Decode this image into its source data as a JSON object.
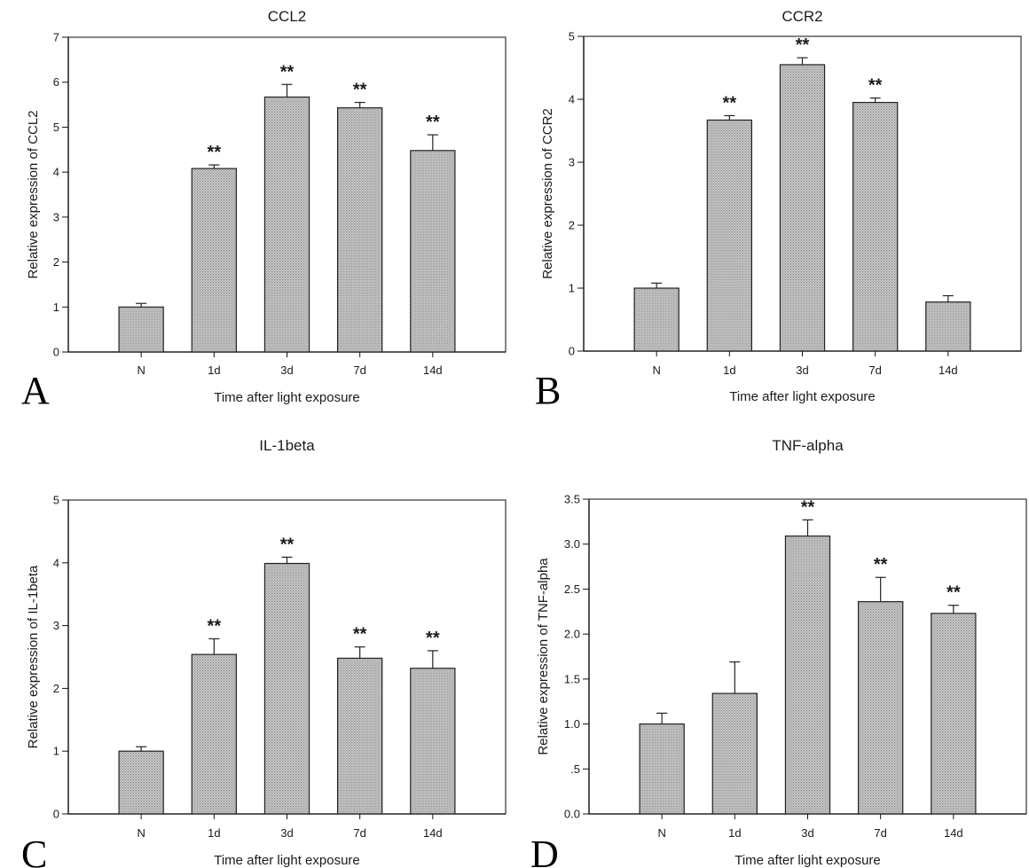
{
  "chart_data": [
    {
      "panel_letter": "A",
      "type": "bar",
      "title": "CCL2",
      "xlabel": "Time after light exposure",
      "ylabel": "Relative expression of CCL2",
      "categories": [
        "N",
        "1d",
        "3d",
        "7d",
        "14d"
      ],
      "values": [
        1.0,
        4.08,
        5.67,
        5.43,
        4.48
      ],
      "errors": [
        0.08,
        0.08,
        0.28,
        0.12,
        0.35
      ],
      "significance": [
        "",
        "**",
        "**",
        "**",
        "**"
      ],
      "ylim": [
        0,
        7
      ],
      "yticks": [
        0,
        1,
        2,
        3,
        4,
        5,
        6,
        7
      ],
      "ytick_labels": [
        "0",
        "1",
        "2",
        "3",
        "4",
        "5",
        "6",
        "7"
      ],
      "grid": false
    },
    {
      "panel_letter": "B",
      "type": "bar",
      "title": "CCR2",
      "xlabel": "Time after light exposure",
      "ylabel": "Relative expression of CCR2",
      "categories": [
        "N",
        "1d",
        "3d",
        "7d",
        "14d"
      ],
      "values": [
        1.0,
        3.67,
        4.55,
        3.95,
        0.78
      ],
      "errors": [
        0.08,
        0.07,
        0.11,
        0.07,
        0.1
      ],
      "significance": [
        "",
        "**",
        "**",
        "**",
        ""
      ],
      "ylim": [
        0,
        5
      ],
      "yticks": [
        0,
        1,
        2,
        3,
        4,
        5
      ],
      "ytick_labels": [
        "0",
        "1",
        "2",
        "3",
        "4",
        "5"
      ],
      "grid": false
    },
    {
      "panel_letter": "C",
      "type": "bar",
      "title": "IL-1beta",
      "xlabel": "Time after light exposure",
      "ylabel": "Relative expression of IL-1beta",
      "categories": [
        "N",
        "1d",
        "3d",
        "7d",
        "14d"
      ],
      "values": [
        1.0,
        2.54,
        3.99,
        2.48,
        2.32
      ],
      "errors": [
        0.07,
        0.25,
        0.1,
        0.18,
        0.28
      ],
      "significance": [
        "",
        "**",
        "**",
        "**",
        "**"
      ],
      "ylim": [
        0,
        5
      ],
      "yticks": [
        0,
        1,
        2,
        3,
        4,
        5
      ],
      "ytick_labels": [
        "0",
        "1",
        "2",
        "3",
        "4",
        "5"
      ],
      "grid": false
    },
    {
      "panel_letter": "D",
      "type": "bar",
      "title": "TNF-alpha",
      "xlabel": "Time after light exposure",
      "ylabel": "Relative expression of TNF-alpha",
      "categories": [
        "N",
        "1d",
        "3d",
        "7d",
        "14d"
      ],
      "values": [
        1.0,
        1.34,
        3.09,
        2.36,
        2.23
      ],
      "errors": [
        0.12,
        0.35,
        0.18,
        0.27,
        0.09
      ],
      "significance": [
        "",
        "",
        "**",
        "**",
        "**"
      ],
      "ylim": [
        0,
        3.5
      ],
      "yticks": [
        0,
        0.5,
        1.0,
        1.5,
        2.0,
        2.5,
        3.0,
        3.5
      ],
      "ytick_labels": [
        "0.0",
        ".5",
        "1.0",
        "1.5",
        "2.0",
        "2.5",
        "3.0",
        "3.5"
      ],
      "grid": false
    }
  ],
  "style": {
    "bar_fill": "#b8b8b8",
    "bar_dot": "#8c8c8c",
    "bar_stroke": "#222222",
    "axis_color": "#333333"
  }
}
